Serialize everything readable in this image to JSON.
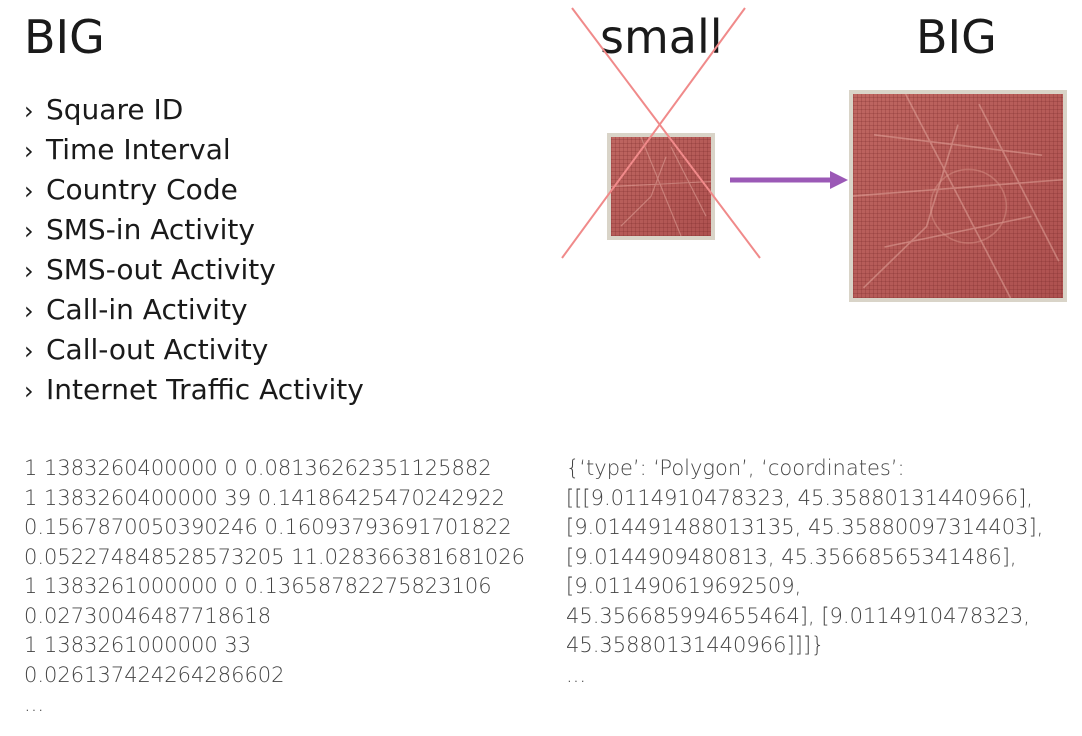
{
  "titles": {
    "left": "BIG",
    "small": "small",
    "right": "BIG"
  },
  "bullet_symbol": "›",
  "bullets": [
    "Square ID",
    "Time Interval",
    "Country Code",
    "SMS-in Activity",
    "SMS-out Activity",
    "Call-in Activity",
    "Call-out Activity",
    "Internet Traffic Activity"
  ],
  "data_left": [
    "1 1383260400000 0 0.08136262351125882",
    "1 1383260400000 39 0.14186425470242922",
    "0.1567870050390246 0.16093793691701822",
    "0.052274848528573205 11.028366381681026",
    "1 1383261000000 0 0.13658782275823106",
    "0.02730046487718618",
    "1 1383261000000 33",
    "0.026137424264286602",
    "..."
  ],
  "data_right": [
    "{‘type’: ‘Polygon’, ‘coordinates’:",
    "[[[9.0114910478323, 45.35880131440966],",
    "[9.014491488013135, 45.35880097314403],",
    "[9.0144909480813, 45.35668565341486],",
    "[9.011490619692509,",
    "45.356685994655464], [9.0114910478323,",
    "45.35880131440966]]]}",
    "..."
  ],
  "colors": {
    "cross": "#f08a8a",
    "arrow": "#9b59b6",
    "map": "#b85a58"
  }
}
